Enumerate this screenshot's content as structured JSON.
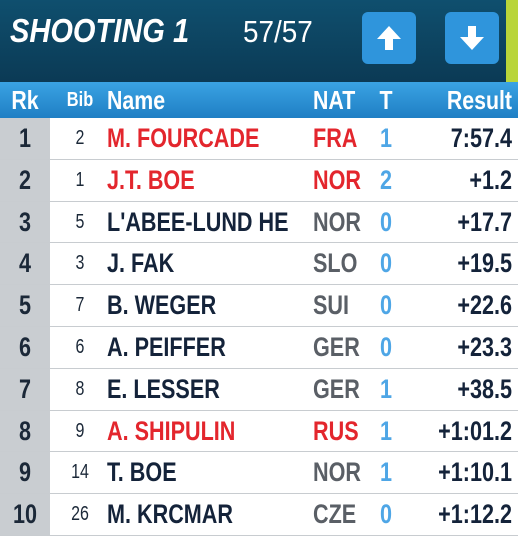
{
  "header": {
    "title": "SHOOTING 1",
    "count": "57/57"
  },
  "table": {
    "columns": [
      "Rk",
      "Bib",
      "Name",
      "NAT",
      "T",
      "Result"
    ],
    "highlight_color": "#e3262d",
    "rows": [
      {
        "rk": 1,
        "bib": 2,
        "name": "M. FOURCADE",
        "nat": "FRA",
        "t": 1,
        "result": "7:57.4",
        "highlight": true
      },
      {
        "rk": 2,
        "bib": 1,
        "name": "J.T. BOE",
        "nat": "NOR",
        "t": 2,
        "result": "+1.2",
        "highlight": true
      },
      {
        "rk": 3,
        "bib": 5,
        "name": "L'ABEE-LUND HE",
        "nat": "NOR",
        "t": 0,
        "result": "+17.7",
        "highlight": false
      },
      {
        "rk": 4,
        "bib": 3,
        "name": "J. FAK",
        "nat": "SLO",
        "t": 0,
        "result": "+19.5",
        "highlight": false
      },
      {
        "rk": 5,
        "bib": 7,
        "name": "B. WEGER",
        "nat": "SUI",
        "t": 0,
        "result": "+22.6",
        "highlight": false
      },
      {
        "rk": 6,
        "bib": 6,
        "name": "A. PEIFFER",
        "nat": "GER",
        "t": 0,
        "result": "+23.3",
        "highlight": false
      },
      {
        "rk": 7,
        "bib": 8,
        "name": "E. LESSER",
        "nat": "GER",
        "t": 1,
        "result": "+38.5",
        "highlight": false
      },
      {
        "rk": 8,
        "bib": 9,
        "name": "A. SHIPULIN",
        "nat": "RUS",
        "t": 1,
        "result": "+1:01.2",
        "highlight": true
      },
      {
        "rk": 9,
        "bib": 14,
        "name": "T. BOE",
        "nat": "NOR",
        "t": 1,
        "result": "+1:10.1",
        "highlight": false
      },
      {
        "rk": 10,
        "bib": 26,
        "name": "M. KRCMAR",
        "nat": "CZE",
        "t": 0,
        "result": "+1:12.2",
        "highlight": false
      }
    ]
  }
}
